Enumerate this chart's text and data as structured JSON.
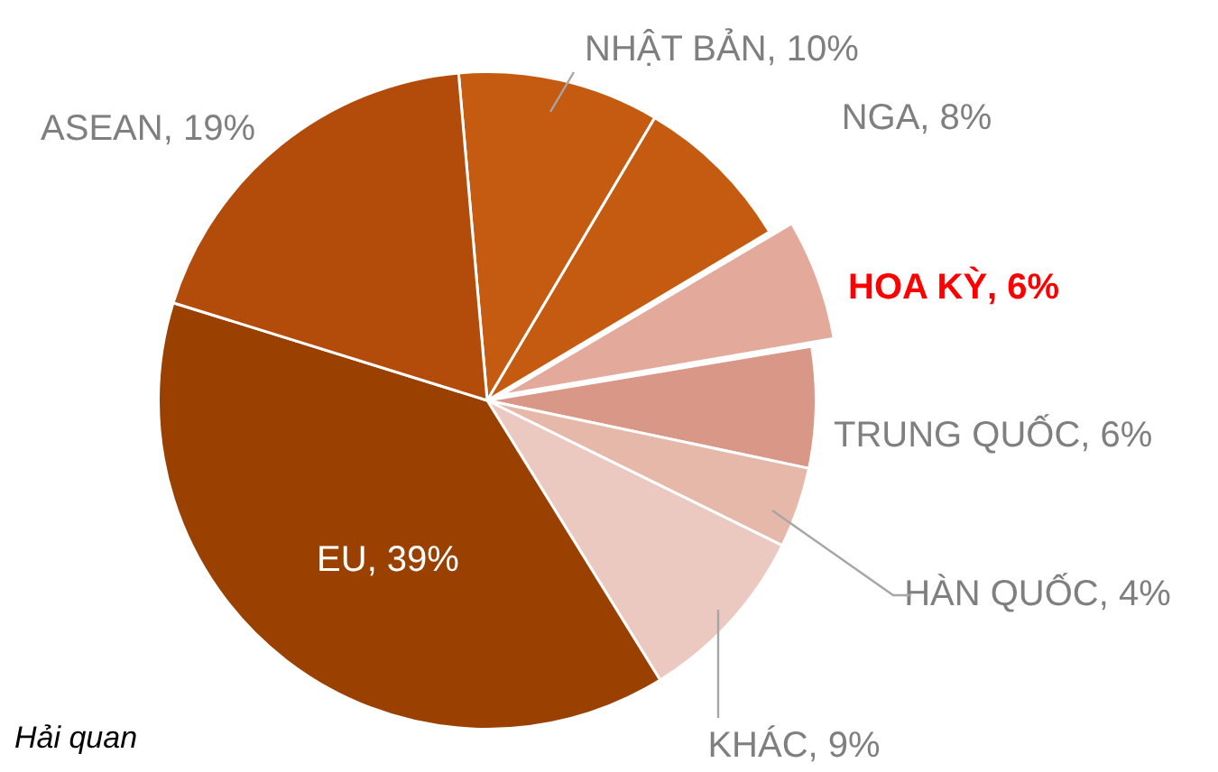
{
  "chart_data": {
    "type": "pie",
    "categories": [
      "NHẬT BẢN",
      "NGA",
      "HOA KỲ",
      "TRUNG QUỐC",
      "HÀN QUỐC",
      "KHÁC",
      "EU",
      "ASEAN"
    ],
    "values": [
      10,
      8,
      6,
      6,
      4,
      9,
      39,
      19
    ],
    "value_labels": [
      "10%",
      "8%",
      "6%",
      "6%",
      "4%",
      "9%",
      "39%",
      "19%"
    ],
    "colors": [
      "#c55a11",
      "#c55a11",
      "#e3aa9c",
      "#d99887",
      "#e6b8aa",
      "#ecc9c0",
      "#9a4000",
      "#b34b0b"
    ],
    "legend": false,
    "annotations": [
      "Hải quan"
    ]
  }
}
